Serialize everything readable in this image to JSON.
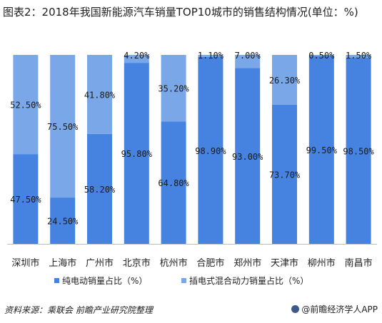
{
  "title": "图表2：2018年我国新能源汽车销量TOP10城市的销售结构情况(单位：%)",
  "footer": {
    "source": "资料来源：乘联会 前瞻产业研究院整理",
    "brand": "@前瞻经济学人APP"
  },
  "colors": {
    "pure_ev": "#4682e0",
    "phev": "#79a7e8"
  },
  "chart_data": {
    "type": "bar",
    "stacked": true,
    "percent_stacked": true,
    "categories": [
      "深圳市",
      "上海市",
      "广州市",
      "北京市",
      "杭州市",
      "合肥市",
      "郑州市",
      "天津市",
      "柳州市",
      "南昌市"
    ],
    "series": [
      {
        "name": "纯电动销量占比（%）",
        "values": [
          47.5,
          24.5,
          58.2,
          95.8,
          64.8,
          98.9,
          93.0,
          73.7,
          99.5,
          98.5
        ],
        "labels": [
          "47.50%",
          "24.50%",
          "58.20%",
          "95.80%",
          "64.80%",
          "98.90%",
          "93.00%",
          "73.70%",
          "99.50%",
          "98.50%"
        ]
      },
      {
        "name": "插电式混合动力销量占比（%）",
        "values": [
          52.5,
          75.5,
          41.8,
          4.2,
          35.2,
          1.1,
          7.0,
          26.3,
          0.5,
          1.5
        ],
        "labels": [
          "52.50%",
          "75.50%",
          "41.80%",
          "4.20%",
          "35.20%",
          "1.10%",
          "7.00%",
          "26.30%",
          "0.50%",
          "1.50%"
        ]
      }
    ],
    "ylim": [
      0,
      100
    ],
    "legend": "bottom",
    "grid": false
  }
}
